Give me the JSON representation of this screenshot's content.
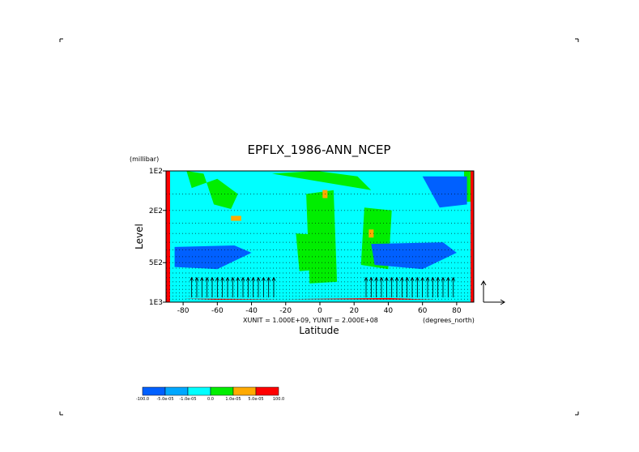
{
  "chart_data": {
    "type": "heatmap",
    "title": "EPFLX_1986-ANN_NCEP",
    "xlabel": "Latitude",
    "x_unit": "(degrees_north)",
    "ylabel": "Level",
    "y_unit": "(millibar)",
    "xlim": [
      -90,
      90
    ],
    "ylim": [
      1000,
      100
    ],
    "y_scale": "log",
    "x_ticks": [
      -80,
      -60,
      -40,
      -20,
      0,
      20,
      40,
      60,
      80
    ],
    "x_tick_labels": [
      "-80",
      "-60",
      "-40",
      "-20",
      "0",
      "20",
      "40",
      "60",
      "80"
    ],
    "y_ticks": [
      100,
      200,
      500,
      1000
    ],
    "y_tick_labels": [
      "1E2",
      "2E2",
      "5E2",
      "1E3"
    ],
    "grid": "dotted horizontal",
    "vector_units_label": "XUNIT = 1.000E+09, YUNIT = 2.000E+08",
    "colorbar": {
      "colors": [
        "#0060ff",
        "#00a8ff",
        "#00ffff",
        "#00ee00",
        "#ffaa00",
        "#ff0000"
      ],
      "labels": [
        "-100.0",
        "-5.0e-05",
        "-1.0e-05",
        "0.0",
        "1.0e-05",
        "5.0e-05",
        "100.0"
      ]
    },
    "regions": [
      {
        "level": "positive",
        "color": "#00ee00",
        "lat": [
          -78,
          -68,
          -62,
          -52,
          -48,
          -60,
          -75
        ],
        "pres": [
          100,
          105,
          180,
          195,
          150,
          115,
          135
        ]
      },
      {
        "level": "positive",
        "color": "#00ee00",
        "lat": [
          -28,
          -2,
          22,
          30
        ],
        "pres": [
          105,
          100,
          110,
          140
        ]
      },
      {
        "level": "positive",
        "color": "#00ee00",
        "lat": [
          -14,
          6,
          4,
          -12
        ],
        "pres": [
          300,
          310,
          560,
          580
        ]
      },
      {
        "level": "positive",
        "color": "#00ee00",
        "lat": [
          -8,
          8,
          10,
          -6
        ],
        "pres": [
          150,
          140,
          700,
          720
        ]
      },
      {
        "level": "positive",
        "color": "#00ee00",
        "lat": [
          26,
          42,
          40,
          24
        ],
        "pres": [
          190,
          200,
          560,
          520
        ]
      },
      {
        "level": "negative",
        "color": "#0060ff",
        "lat": [
          -85,
          -50,
          -40,
          -60,
          -85
        ],
        "pres": [
          380,
          370,
          420,
          560,
          540
        ]
      },
      {
        "level": "negative",
        "color": "#0060ff",
        "lat": [
          30,
          72,
          80,
          60,
          32
        ],
        "pres": [
          360,
          350,
          420,
          560,
          520
        ]
      },
      {
        "level": "negative",
        "color": "#0060ff",
        "lat": [
          60,
          86,
          86,
          70
        ],
        "pres": [
          110,
          110,
          180,
          190
        ]
      },
      {
        "level": "strong_positive",
        "color": "#ffaa00",
        "lat": [
          -52,
          -46
        ],
        "pres": [
          220,
          240
        ]
      },
      {
        "level": "strong_positive",
        "color": "#ffaa00",
        "lat": [
          3
        ],
        "pres": [
          150
        ]
      },
      {
        "level": "strong_positive",
        "color": "#ffaa00",
        "lat": [
          30
        ],
        "pres": [
          300
        ]
      },
      {
        "level": "strong_positive",
        "color": "#ff0000",
        "lat": [
          -80,
          -60,
          40,
          70
        ],
        "pres": [
          940,
          960,
          930,
          960
        ]
      }
    ],
    "arrows_band": {
      "lat": [
        -75,
        80
      ],
      "pres_from": 920,
      "pres_to": 650
    }
  }
}
